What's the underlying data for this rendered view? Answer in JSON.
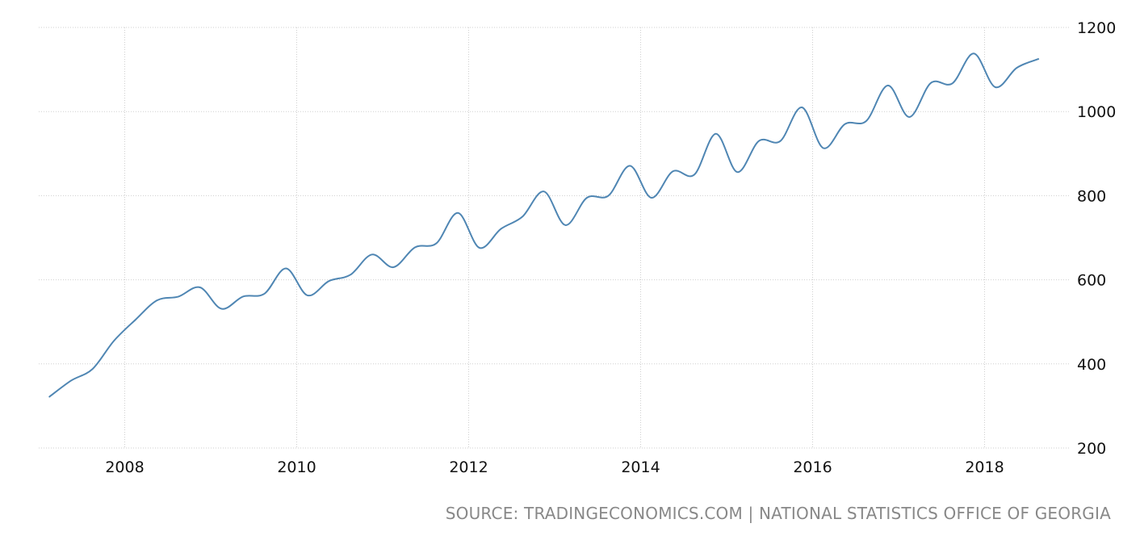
{
  "source_text": "SOURCE: TRADINGECONOMICS.COM | NATIONAL STATISTICS OFFICE OF GEORGIA",
  "colors": {
    "line": "#4f86b3",
    "grid": "#cfcfcf",
    "source_text": "#888888"
  },
  "chart_data": {
    "type": "line",
    "title": "",
    "xlabel": "",
    "ylabel": "",
    "xlim": [
      2007.0,
      2019.0
    ],
    "ylim": [
      200,
      1200
    ],
    "x_ticks": [
      2008,
      2010,
      2012,
      2014,
      2016,
      2018
    ],
    "x_tick_labels": [
      "2008",
      "2010",
      "2012",
      "2014",
      "2016",
      "2018"
    ],
    "y_ticks": [
      200,
      400,
      600,
      800,
      1000,
      1200
    ],
    "y_tick_labels": [
      "200",
      "400",
      "600",
      "800",
      "1000",
      "1200"
    ],
    "y_axis_side": "right",
    "grid": true,
    "series": [
      {
        "x": [
          2007.125,
          2007.375,
          2007.625,
          2007.875,
          2008.125,
          2008.375,
          2008.625,
          2008.875,
          2009.125,
          2009.375,
          2009.625,
          2009.875,
          2010.125,
          2010.375,
          2010.625,
          2010.875,
          2011.125,
          2011.375,
          2011.625,
          2011.875,
          2012.125,
          2012.375,
          2012.625,
          2012.875,
          2013.125,
          2013.375,
          2013.625,
          2013.875,
          2014.125,
          2014.375,
          2014.625,
          2014.875,
          2015.125,
          2015.375,
          2015.625,
          2015.875,
          2016.125,
          2016.375,
          2016.625,
          2016.875,
          2017.125,
          2017.375,
          2017.625,
          2017.875,
          2018.125,
          2018.375,
          2018.625
        ],
        "values": [
          322,
          360,
          388,
          455,
          505,
          551,
          560,
          582,
          531,
          560,
          567,
          627,
          563,
          597,
          612,
          660,
          630,
          677,
          687,
          759,
          676,
          721,
          750,
          810,
          730,
          795,
          800,
          871,
          795,
          858,
          850,
          947,
          856,
          930,
          930,
          1010,
          913,
          970,
          978,
          1062,
          987,
          1068,
          1067,
          1138,
          1058,
          1104,
          1125
        ]
      }
    ]
  }
}
